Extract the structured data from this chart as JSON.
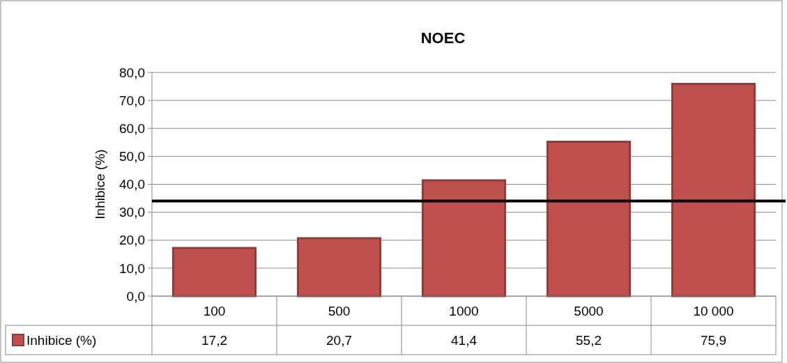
{
  "chart_data": {
    "type": "bar",
    "title": "NOEC",
    "ylabel": "Inhibice (%)",
    "categories": [
      "100",
      "500",
      "1000",
      "5000",
      "10 000"
    ],
    "series": [
      {
        "name": "Inhibice (%)",
        "color": "#c0504d",
        "values": [
          17.2,
          20.7,
          41.4,
          55.2,
          75.9
        ],
        "value_labels": [
          "17,2",
          "20,7",
          "41,4",
          "55,2",
          "75,9"
        ]
      }
    ],
    "ylim": [
      0,
      80
    ],
    "yticks": [
      {
        "value": 0,
        "label": "0,0"
      },
      {
        "value": 10,
        "label": "10,0"
      },
      {
        "value": 20,
        "label": "20,0"
      },
      {
        "value": 30,
        "label": "30,0"
      },
      {
        "value": 40,
        "label": "40,0"
      },
      {
        "value": 50,
        "label": "50,0"
      },
      {
        "value": 60,
        "label": "60,0"
      },
      {
        "value": 70,
        "label": "70,0"
      },
      {
        "value": 80,
        "label": "80,0"
      }
    ],
    "grid": "y",
    "legend": "bottom",
    "ref_lines": [
      {
        "axis": "y",
        "value": 34,
        "color": "#000000"
      }
    ]
  }
}
